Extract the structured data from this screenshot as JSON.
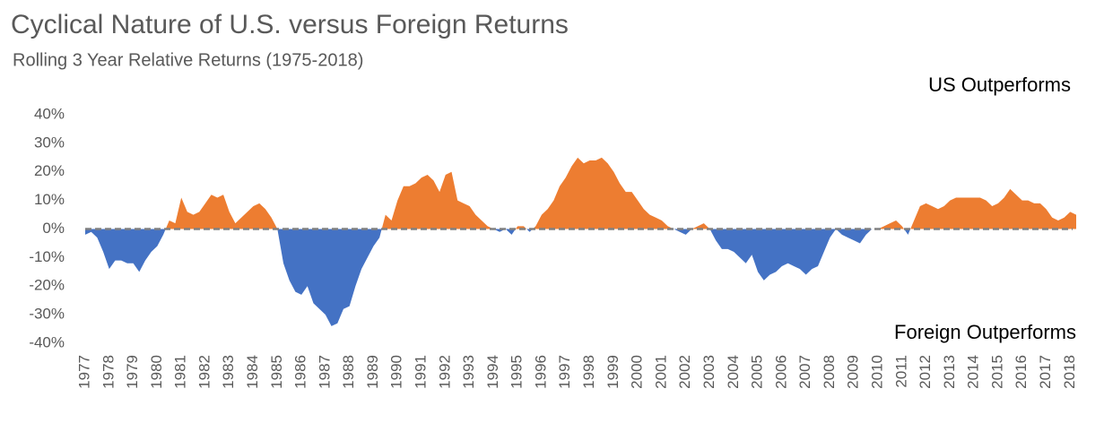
{
  "chart_data": {
    "type": "area",
    "title": "Cyclical Nature of U.S. versus Foreign Returns",
    "subtitle": "Rolling 3 Year Relative Returns (1975-2018)",
    "annotations": [
      "US Outperforms",
      "Foreign Outperforms"
    ],
    "color_positive": "#ed7d31",
    "color_negative": "#4472c4",
    "zero_line": true,
    "x": [
      1977,
      1977.25,
      1977.5,
      1977.75,
      1978,
      1978.25,
      1978.5,
      1978.75,
      1979,
      1979.25,
      1979.5,
      1979.75,
      1980,
      1980.25,
      1980.5,
      1980.75,
      1981,
      1981.25,
      1981.5,
      1981.75,
      1982,
      1982.25,
      1982.5,
      1982.75,
      1983,
      1983.25,
      1983.5,
      1983.75,
      1984,
      1984.25,
      1984.5,
      1984.75,
      1985,
      1985.25,
      1985.5,
      1985.75,
      1986,
      1986.25,
      1986.5,
      1986.75,
      1987,
      1987.25,
      1987.5,
      1987.75,
      1988,
      1988.25,
      1988.5,
      1988.75,
      1989,
      1989.25,
      1989.5,
      1989.75,
      1990,
      1990.25,
      1990.5,
      1990.75,
      1991,
      1991.25,
      1991.5,
      1991.75,
      1992,
      1992.25,
      1992.5,
      1992.75,
      1993,
      1993.25,
      1993.5,
      1993.75,
      1994,
      1994.25,
      1994.5,
      1994.75,
      1995,
      1995.25,
      1995.5,
      1995.75,
      1996,
      1996.25,
      1996.5,
      1996.75,
      1997,
      1997.25,
      1997.5,
      1997.75,
      1998,
      1998.25,
      1998.5,
      1998.75,
      1999,
      1999.25,
      1999.5,
      1999.75,
      2000,
      2000.25,
      2000.5,
      2000.75,
      2001,
      2001.25,
      2001.5,
      2001.75,
      2002,
      2002.25,
      2002.5,
      2002.75,
      2003,
      2003.25,
      2003.5,
      2003.75,
      2004,
      2004.25,
      2004.5,
      2004.75,
      2005,
      2005.25,
      2005.5,
      2005.75,
      2006,
      2006.25,
      2006.5,
      2006.75,
      2007,
      2007.25,
      2007.5,
      2007.75,
      2008,
      2008.25,
      2008.5,
      2008.75,
      2009,
      2009.25,
      2009.5,
      2009.75,
      2010,
      2010.25,
      2010.5,
      2010.75,
      2011,
      2011.25,
      2011.5,
      2011.75,
      2012,
      2012.25,
      2012.5,
      2012.75,
      2013,
      2013.25,
      2013.5,
      2013.75,
      2014,
      2014.25,
      2014.5,
      2014.75,
      2015,
      2015.25,
      2015.5,
      2015.75,
      2016,
      2016.25,
      2016.5,
      2016.75,
      2017,
      2017.25,
      2017.5,
      2017.75,
      2018,
      2018.25
    ],
    "values": [
      -2,
      -1,
      -3,
      -8,
      -14,
      -11,
      -11,
      -12,
      -12,
      -15,
      -11,
      -8,
      -6,
      -2,
      3,
      2,
      11,
      6,
      5,
      6,
      9,
      12,
      11,
      12,
      6,
      2,
      4,
      6,
      8,
      9,
      7,
      4,
      0,
      -12,
      -18,
      -22,
      -23,
      -20,
      -26,
      -28,
      -30,
      -34,
      -33,
      -28,
      -27,
      -20,
      -14,
      -10,
      -6,
      -3,
      5,
      3,
      10,
      15,
      15,
      16,
      18,
      19,
      17,
      13,
      19,
      20,
      10,
      9,
      8,
      5,
      3,
      1,
      0,
      -1,
      0,
      -2,
      1,
      1,
      -1,
      1,
      5,
      7,
      10,
      15,
      18,
      22,
      25,
      23,
      24,
      24,
      25,
      23,
      20,
      16,
      13,
      13,
      10,
      7,
      5,
      4,
      3,
      1,
      0,
      -1,
      -2,
      0,
      1,
      2,
      0,
      -4,
      -7,
      -7,
      -8,
      -10,
      -12,
      -9,
      -15,
      -18,
      -16,
      -15,
      -13,
      -12,
      -13,
      -14,
      -16,
      -14,
      -13,
      -8,
      -3,
      0,
      -2,
      -3,
      -4,
      -5,
      -2,
      0,
      0,
      1,
      2,
      3,
      1,
      -2,
      3,
      8,
      9,
      8,
      7,
      8,
      10,
      11,
      11,
      11,
      11,
      11,
      10,
      8,
      9,
      11,
      14,
      12,
      10,
      10,
      9,
      9,
      7,
      4,
      3,
      4,
      6,
      5
    ],
    "xlim": [
      1977,
      2018.25
    ],
    "xticks": [
      1977,
      1978,
      1979,
      1980,
      1981,
      1982,
      1983,
      1984,
      1985,
      1986,
      1987,
      1988,
      1989,
      1990,
      1991,
      1992,
      1993,
      1994,
      1995,
      1996,
      1997,
      1998,
      1999,
      2000,
      2001,
      2002,
      2003,
      2004,
      2005,
      2006,
      2007,
      2008,
      2009,
      2010,
      2011,
      2012,
      2013,
      2014,
      2015,
      2016,
      2017,
      2018
    ],
    "ylim": [
      -40,
      40
    ],
    "yticks": [
      {
        "value": 40,
        "label": "40%"
      },
      {
        "value": 30,
        "label": "30%"
      },
      {
        "value": 20,
        "label": "20%"
      },
      {
        "value": 10,
        "label": "10%"
      },
      {
        "value": 0,
        "label": "0%"
      },
      {
        "value": -10,
        "label": "-10%"
      },
      {
        "value": -20,
        "label": "-20%"
      },
      {
        "value": -30,
        "label": "-30%"
      },
      {
        "value": -40,
        "label": "-40%"
      }
    ]
  }
}
